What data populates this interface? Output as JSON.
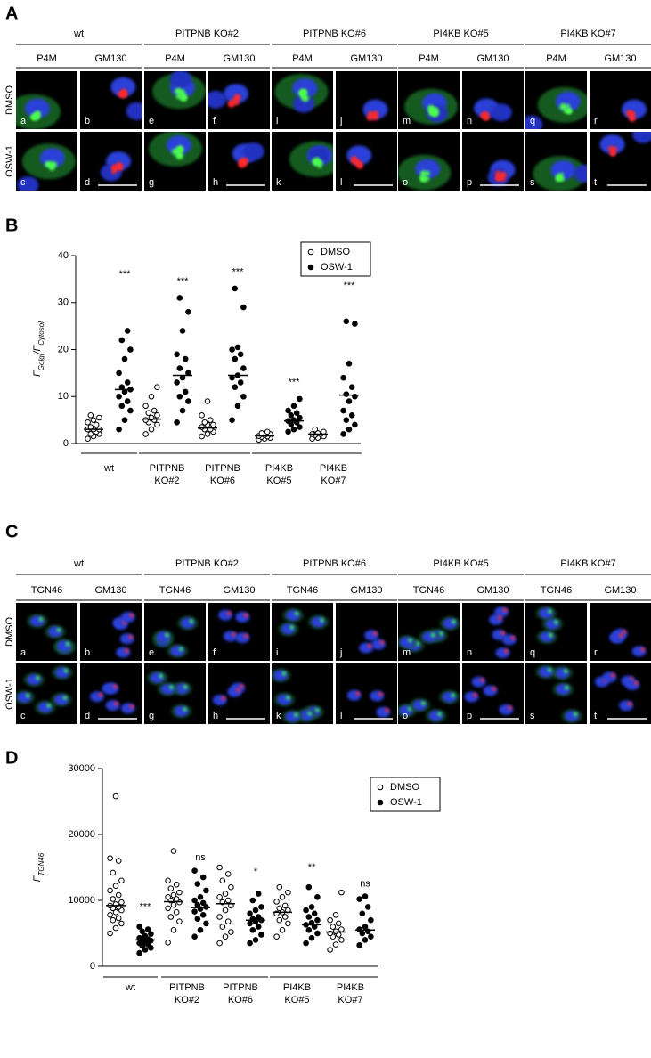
{
  "panel_labels": [
    "A",
    "B",
    "C",
    "D"
  ],
  "figures": [
    {
      "groups": [
        "wt",
        "PITPNB KO#2",
        "PITPNB KO#6",
        "PI4KB KO#5",
        "PI4KB KO#7"
      ],
      "channels": [
        "P4M",
        "GM130"
      ],
      "rows": [
        "DMSO",
        "OSW-1"
      ],
      "letters": [
        "a",
        "b",
        "c",
        "d",
        "e",
        "f",
        "g",
        "h",
        "i",
        "j",
        "k",
        "l",
        "m",
        "n",
        "o",
        "p",
        "q",
        "r",
        "s",
        "t"
      ]
    },
    {
      "groups": [
        "wt",
        "PITPNB KO#2",
        "PITPNB KO#6",
        "PI4KB KO#5",
        "PI4KB KO#7"
      ],
      "channels": [
        "TGN46",
        "GM130"
      ],
      "rows": [
        "DMSO",
        "OSW-1"
      ],
      "letters": [
        "a",
        "b",
        "c",
        "d",
        "e",
        "f",
        "g",
        "h",
        "i",
        "j",
        "k",
        "l",
        "m",
        "n",
        "o",
        "p",
        "q",
        "r",
        "s",
        "t"
      ]
    }
  ],
  "chart_data": [
    {
      "type": "strip",
      "y_label": {
        "main": "F",
        "sub1": "Golgi",
        "mid": "/F",
        "sub2": "Cytosol"
      },
      "categories": [
        [
          "wt"
        ],
        [
          "PITPNB",
          "KO#2"
        ],
        [
          "PITPNB",
          "KO#6"
        ],
        [
          "PI4KB",
          "KO#5"
        ],
        [
          "PI4KB",
          "KO#7"
        ]
      ],
      "series": [
        {
          "name": "DMSO",
          "marker": "open",
          "color": "#000000",
          "values": [
            [
              1,
              1.5,
              2,
              2,
              2.5,
              3,
              3,
              3,
              3.5,
              4,
              4.5,
              5,
              5.5,
              6
            ],
            [
              2,
              3,
              4,
              4.5,
              5,
              5,
              5.5,
              6,
              6.5,
              7,
              8,
              10,
              12
            ],
            [
              1.5,
              2,
              2.5,
              3,
              3,
              3.5,
              4,
              4,
              4.5,
              5,
              6,
              9
            ],
            [
              0.8,
              1,
              1.2,
              1.4,
              1.5,
              1.6,
              1.8,
              2,
              2.2,
              2.5
            ],
            [
              1,
              1.2,
              1.5,
              1.8,
              2,
              2,
              2.2,
              2.5,
              3
            ]
          ],
          "medians": [
            3,
            5.2,
            3.3,
            1.6,
            2
          ]
        },
        {
          "name": "OSW-1",
          "marker": "filled",
          "color": "#000000",
          "values": [
            [
              3,
              5,
              7,
              8,
              9,
              10,
              11,
              11.5,
              12,
              13,
              15,
              18,
              20,
              22,
              24
            ],
            [
              4.5,
              7,
              9,
              10,
              11,
              13,
              14,
              15,
              16,
              18,
              19,
              24,
              28,
              31
            ],
            [
              5,
              8,
              10,
              12,
              13,
              14,
              14.5,
              16,
              18,
              19,
              20,
              20.5,
              29,
              33
            ],
            [
              2.5,
              3,
              3.5,
              4,
              4.5,
              4.8,
              5,
              5.5,
              6,
              6.5,
              7,
              8,
              9.5
            ],
            [
              2,
              3,
              4,
              5,
              6,
              7,
              9,
              10,
              10.5,
              12,
              14,
              17,
              25.5,
              26
            ]
          ],
          "medians": [
            11.5,
            14.5,
            14.5,
            4.8,
            10.3
          ]
        }
      ],
      "significance": [
        {
          "label": "***",
          "value": 36
        },
        {
          "label": "***",
          "value": 34.5
        },
        {
          "label": "***",
          "value": 36.5
        },
        {
          "label": "***",
          "value": 13
        },
        {
          "label": "***",
          "value": 33.5
        }
      ],
      "ylim": [
        0,
        40
      ],
      "yticks": [
        0,
        10,
        20,
        30,
        40
      ],
      "legend": "top-right"
    },
    {
      "type": "strip",
      "y_label": {
        "main": "F",
        "sub1": "TGN46"
      },
      "categories": [
        [
          "wt"
        ],
        [
          "PITPNB",
          "KO#2"
        ],
        [
          "PITPNB",
          "KO#6"
        ],
        [
          "PI4KB",
          "KO#5"
        ],
        [
          "PI4KB",
          "KO#7"
        ]
      ],
      "series": [
        {
          "name": "DMSO",
          "marker": "open",
          "color": "#000000",
          "values": [
            [
              5000,
              5800,
              6500,
              7000,
              7300,
              7800,
              8200,
              8500,
              8800,
              9000,
              9200,
              9400,
              9700,
              10200,
              10800,
              11500,
              12200,
              13000,
              14200,
              16000,
              16400,
              25800
            ],
            [
              3600,
              5500,
              6800,
              7500,
              8200,
              8800,
              9300,
              9700,
              10000,
              10200,
              10500,
              10800,
              11200,
              11800,
              12400,
              13000,
              17500
            ],
            [
              3500,
              4500,
              5200,
              6000,
              6800,
              7500,
              8500,
              9200,
              9700,
              10000,
              10500,
              11000,
              12000,
              13000,
              14000,
              15000
            ],
            [
              4500,
              5500,
              6500,
              7000,
              7500,
              8000,
              8200,
              8500,
              8800,
              9200,
              9800,
              10500,
              11200,
              12000
            ],
            [
              2500,
              3300,
              4000,
              4500,
              4800,
              5000,
              5300,
              5600,
              6000,
              6500,
              7000,
              7800,
              11200
            ]
          ],
          "medians": [
            9200,
            9800,
            9500,
            8200,
            5200
          ]
        },
        {
          "name": "OSW-1",
          "marker": "filled",
          "color": "#000000",
          "values": [
            [
              2000,
              2500,
              2800,
              3100,
              3300,
              3500,
              3700,
              3900,
              4000,
              4100,
              4300,
              4600,
              4900,
              5300,
              5600,
              6000
            ],
            [
              4500,
              5500,
              6500,
              7200,
              7800,
              8300,
              8700,
              9000,
              9300,
              9600,
              10000,
              10500,
              11500,
              12500,
              13500,
              14500
            ],
            [
              3500,
              4000,
              4800,
              5500,
              6000,
              6500,
              6800,
              7000,
              7200,
              7500,
              8000,
              8500,
              9000,
              10000,
              11000
            ],
            [
              3500,
              4300,
              5000,
              5500,
              6000,
              6300,
              6600,
              7000,
              7500,
              8000,
              8500,
              9000,
              10500,
              12000
            ],
            [
              3200,
              4000,
              4500,
              5000,
              5300,
              5600,
              6000,
              7000,
              8000,
              9000,
              10200,
              10600
            ]
          ],
          "medians": [
            4000,
            8900,
            7000,
            6300,
            5500
          ]
        }
      ],
      "significance": [
        {
          "label": "***",
          "value": 9000
        },
        {
          "label": "ns",
          "value": 16500
        },
        {
          "label": "*",
          "value": 14300
        },
        {
          "label": "**",
          "value": 15000
        },
        {
          "label": "ns",
          "value": 12500
        }
      ],
      "ylim": [
        0,
        30000
      ],
      "yticks": [
        0,
        10000,
        20000,
        30000
      ],
      "legend": "top-right"
    }
  ]
}
